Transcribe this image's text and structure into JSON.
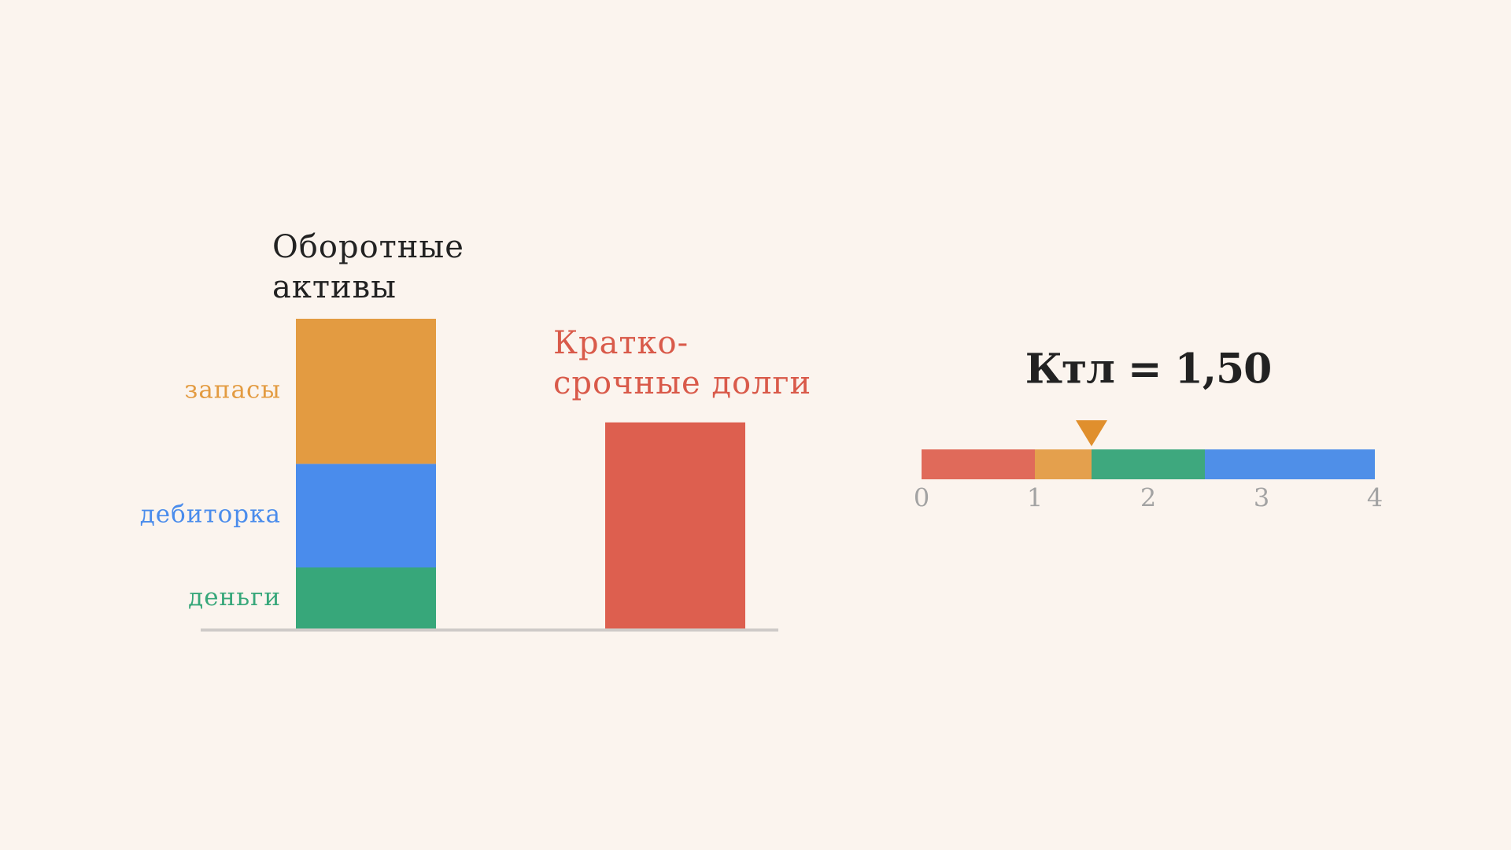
{
  "chart_data": [
    {
      "type": "bar",
      "stacked": true,
      "categories": [
        [
          "Оборотные",
          "активы"
        ],
        [
          "Кратко-",
          "срочные долги"
        ]
      ],
      "category_colors": [
        "#222222",
        "#d95a4a"
      ],
      "series": [
        {
          "name": "деньги",
          "color": "#37a77a",
          "values": [
            30,
            null
          ]
        },
        {
          "name": "дебиторка",
          "color": "#4a8cec",
          "values": [
            50,
            null
          ]
        },
        {
          "name": "запасы",
          "color": "#e39b41",
          "values": [
            70,
            null
          ]
        },
        {
          "color": "#dd5f4f",
          "values": [
            null,
            100
          ]
        }
      ],
      "ylim": [
        0,
        150
      ]
    },
    {
      "type": "scale",
      "title": "Ктл = 1,50",
      "xlim": [
        0,
        4
      ],
      "xticks": [
        0,
        1,
        2,
        3,
        4
      ],
      "segments": [
        {
          "from": 0,
          "to": 1,
          "color": "#e06a5a"
        },
        {
          "from": 1,
          "to": 1.5,
          "color": "#e4a04d"
        },
        {
          "from": 1.5,
          "to": 2.5,
          "color": "#3ea87e"
        },
        {
          "from": 2.5,
          "to": 4,
          "color": "#4f8fe8"
        }
      ],
      "marker": 1.5,
      "marker_color": "#e08f2d"
    }
  ]
}
